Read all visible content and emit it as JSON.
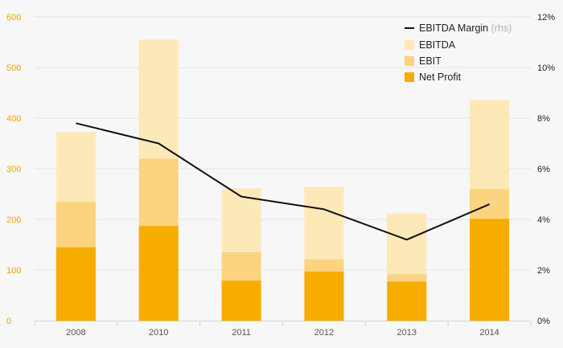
{
  "chart_data": {
    "type": "bar",
    "stacked_overlay": true,
    "categories": [
      "2008",
      "2010",
      "2011",
      "2012",
      "2013",
      "2014"
    ],
    "series": [
      {
        "name": "EBITDA",
        "kind": "bar",
        "axis": "left",
        "color": "#fde9b8",
        "values": [
          373,
          555,
          261,
          264,
          212,
          436
        ]
      },
      {
        "name": "EBIT",
        "kind": "bar",
        "axis": "left",
        "color": "#fcd37f",
        "values": [
          235,
          320,
          135,
          121,
          92,
          260
        ]
      },
      {
        "name": "Net Profit",
        "kind": "bar",
        "axis": "left",
        "color": "#f7ac00",
        "values": [
          145,
          187,
          79,
          97,
          77,
          201
        ]
      },
      {
        "name": "EBITDA Margin",
        "name_suffix": "(rhs)",
        "kind": "line",
        "axis": "right",
        "color": "#111111",
        "values": [
          7.8,
          7.0,
          4.9,
          4.4,
          3.2,
          4.6
        ]
      }
    ],
    "y_left": {
      "min": 0,
      "max": 600,
      "ticks": [
        "0",
        "100",
        "200",
        "300",
        "400",
        "500",
        "600"
      ]
    },
    "y_right": {
      "min": 0,
      "max": 12,
      "ticks": [
        "0%",
        "2%",
        "4%",
        "6%",
        "8%",
        "10%",
        "12%"
      ]
    },
    "grid": true,
    "legend_position": "top-right",
    "title": "",
    "xlabel": "",
    "ylabel": ""
  }
}
